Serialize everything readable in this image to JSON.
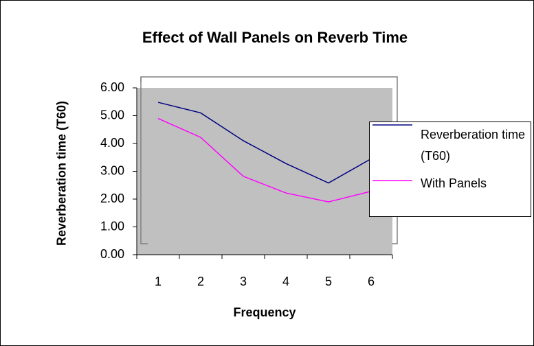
{
  "chart_data": {
    "type": "line",
    "title": "Effect of Wall Panels on Reverb Time",
    "x_label": "Frequency",
    "y_label": "Reverberation time (T60)",
    "categories": [
      "1",
      "2",
      "3",
      "4",
      "5",
      "6"
    ],
    "series": [
      {
        "name": "Reverberation time (T60)",
        "color": "#000080",
        "values": [
          5.48,
          5.1,
          4.1,
          3.28,
          2.58,
          3.45
        ]
      },
      {
        "name": "With Panels",
        "color": "#ff00ff",
        "values": [
          4.9,
          4.22,
          2.82,
          2.22,
          1.9,
          2.28
        ]
      }
    ],
    "ylim": [
      0,
      6
    ],
    "yticks": [
      {
        "value": 0,
        "label": "0.00"
      },
      {
        "value": 1,
        "label": "1.00"
      },
      {
        "value": 2,
        "label": "2.00"
      },
      {
        "value": 3,
        "label": "3.00"
      },
      {
        "value": 4,
        "label": "4.00"
      },
      {
        "value": 5,
        "label": "5.00"
      },
      {
        "value": 6,
        "label": "6.00"
      }
    ],
    "legend": "right",
    "plot_background": "#c0c0c0"
  }
}
